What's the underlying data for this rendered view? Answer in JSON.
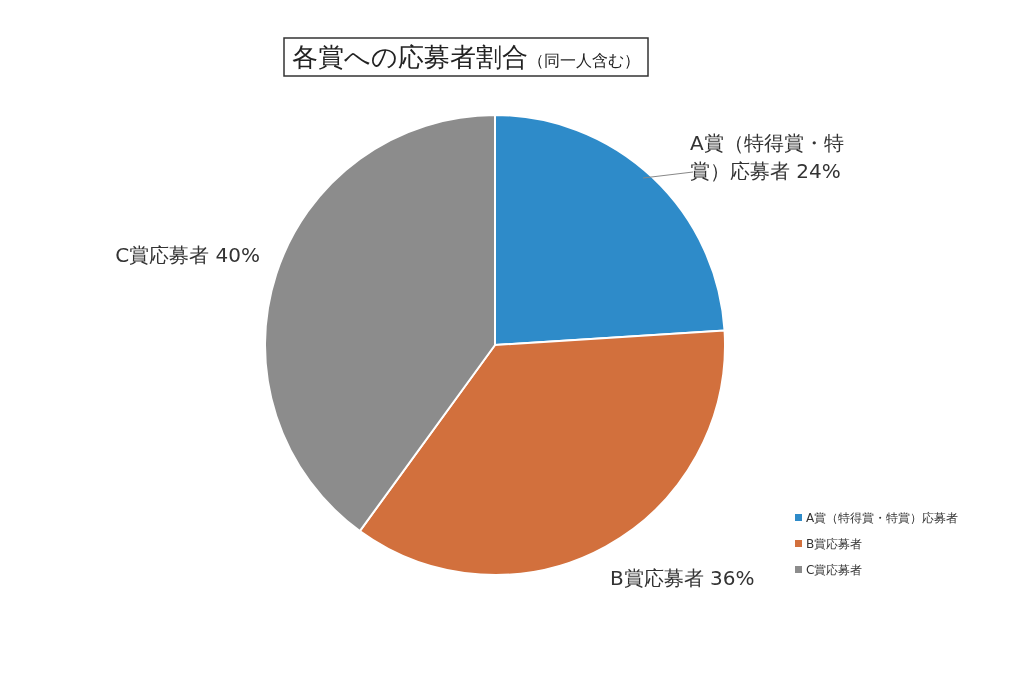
{
  "chart_data": {
    "type": "pie",
    "title": "各賞への応募者割合",
    "subtitle": "（同一人含む）",
    "categories": [
      "A賞（特得賞・特賞）応募者",
      "B賞応募者",
      "C賞応募者"
    ],
    "values": [
      24,
      36,
      40
    ],
    "value_labels": [
      "24%",
      "36%",
      "40%"
    ],
    "colors": [
      "#2e8bc9",
      "#d2703d",
      "#8c8c8c"
    ],
    "legend": "bottom right"
  }
}
